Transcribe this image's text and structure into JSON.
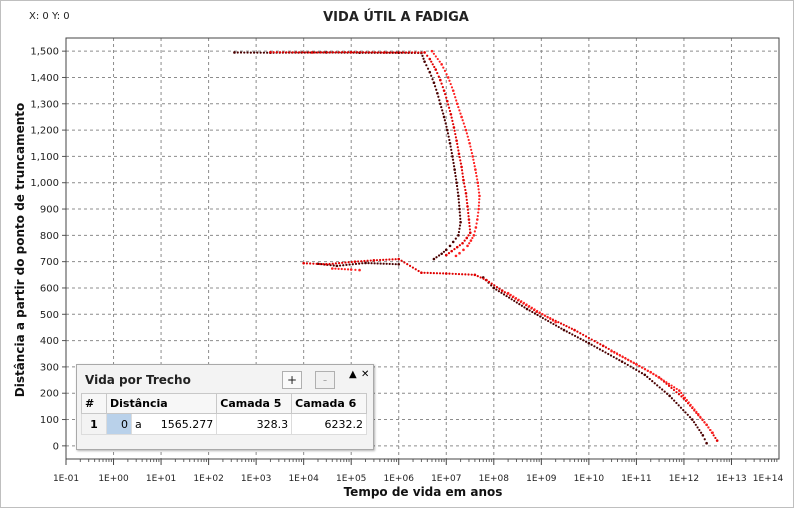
{
  "window": {
    "coords": "X: 0 Y: 0",
    "title": "VIDA ÚTIL A FADIGA"
  },
  "chart_data": {
    "type": "scatter",
    "title": "VIDA ÚTIL A FADIGA",
    "xlabel": "Tempo de vida em anos",
    "ylabel": "Distância a partir do ponto de truncamento",
    "x_scale": "log",
    "xlim": [
      "1E-01",
      "1E+14"
    ],
    "ylim": [
      -50,
      1550
    ],
    "x_ticks": [
      "1E-01",
      "1E+00",
      "1E+01",
      "1E+02",
      "1E+03",
      "1E+04",
      "1E+05",
      "1E+06",
      "1E+07",
      "1E+08",
      "1E+09",
      "1E+10",
      "1E+11",
      "1E+12",
      "1E+13",
      "1E+14"
    ],
    "y_ticks": [
      "0",
      "100",
      "200",
      "300",
      "400",
      "500",
      "600",
      "700",
      "800",
      "900",
      "1,000",
      "1,100",
      "1,200",
      "1,300",
      "1,400",
      "1,500"
    ],
    "grid": true,
    "colors": {
      "dark": "#4a0000",
      "red": "#e00000",
      "bright": "#ff2020"
    },
    "series": [
      {
        "color": "dark",
        "points": [
          [
            350,
            1495
          ],
          [
            2000,
            1494
          ],
          [
            30000,
            1495
          ],
          [
            150000,
            1494
          ],
          [
            1000000,
            1494
          ],
          [
            3000000,
            1493
          ],
          [
            3500000,
            1460
          ],
          [
            4500000,
            1420
          ],
          [
            5500000,
            1380
          ],
          [
            6500000,
            1340
          ],
          [
            7500000,
            1300
          ],
          [
            9000000,
            1250
          ],
          [
            10500000,
            1200
          ],
          [
            12000000,
            1150
          ],
          [
            13500000,
            1100
          ],
          [
            15000000,
            1050
          ],
          [
            16500000,
            1000
          ],
          [
            18000000,
            950
          ],
          [
            19000000,
            900
          ],
          [
            20000000,
            850
          ],
          [
            18000000,
            800
          ],
          [
            14000000,
            775
          ],
          [
            12000000,
            760
          ],
          [
            10000000,
            745
          ],
          [
            8000000,
            730
          ],
          [
            5500000,
            710
          ],
          [
            20000,
            692
          ],
          [
            50000,
            684
          ],
          [
            200000,
            695
          ],
          [
            1000000,
            690
          ],
          [
            60000000,
            640
          ],
          [
            100000000,
            600
          ],
          [
            500000000,
            520
          ],
          [
            3000000000,
            440
          ],
          [
            10000000000,
            390
          ],
          [
            50000000000,
            320
          ],
          [
            150000000000,
            270
          ],
          [
            500000000000,
            190
          ],
          [
            1500000000000,
            100
          ],
          [
            2500000000000,
            40
          ],
          [
            3000000000000,
            10
          ]
        ]
      },
      {
        "color": "red",
        "points": [
          [
            2000,
            1496
          ],
          [
            15000,
            1495
          ],
          [
            100000,
            1496
          ],
          [
            500000,
            1495
          ],
          [
            3500000,
            1495
          ],
          [
            4500000,
            1470
          ],
          [
            6000000,
            1430
          ],
          [
            7500000,
            1390
          ],
          [
            9000000,
            1350
          ],
          [
            10500000,
            1310
          ],
          [
            12500000,
            1260
          ],
          [
            14500000,
            1210
          ],
          [
            16500000,
            1160
          ],
          [
            18500000,
            1110
          ],
          [
            21000000,
            1060
          ],
          [
            23000000,
            1010
          ],
          [
            26000000,
            960
          ],
          [
            28000000,
            910
          ],
          [
            30000000,
            860
          ],
          [
            32000000,
            810
          ],
          [
            27000000,
            790
          ],
          [
            22000000,
            770
          ],
          [
            17000000,
            755
          ],
          [
            13000000,
            740
          ],
          [
            10000000,
            725
          ],
          [
            10000,
            694
          ],
          [
            30000,
            690
          ],
          [
            120000,
            700
          ],
          [
            300000,
            705
          ],
          [
            1000000,
            710
          ],
          [
            3000000,
            658
          ],
          [
            10000000,
            655
          ],
          [
            40000000,
            650
          ],
          [
            70000000,
            630
          ],
          [
            150000000,
            590
          ],
          [
            800000000,
            510
          ],
          [
            5000000000,
            440
          ],
          [
            20000000000,
            380
          ],
          [
            100000000000,
            310
          ],
          [
            300000000000,
            260
          ],
          [
            1000000000000,
            180
          ],
          [
            3000000000000,
            80
          ],
          [
            5000000000000,
            20
          ]
        ]
      },
      {
        "color": "bright",
        "points": [
          [
            5000000,
            1500
          ],
          [
            8000000,
            1450
          ],
          [
            11000000,
            1400
          ],
          [
            14000000,
            1350
          ],
          [
            17000000,
            1300
          ],
          [
            21000000,
            1250
          ],
          [
            26000000,
            1200
          ],
          [
            31000000,
            1150
          ],
          [
            36000000,
            1100
          ],
          [
            41000000,
            1050
          ],
          [
            46000000,
            1000
          ],
          [
            50000000,
            950
          ],
          [
            48000000,
            900
          ],
          [
            45000000,
            860
          ],
          [
            42000000,
            830
          ],
          [
            38000000,
            800
          ],
          [
            33000000,
            780
          ],
          [
            28000000,
            760
          ],
          [
            23000000,
            745
          ],
          [
            19000000,
            732
          ],
          [
            16000000,
            722
          ],
          [
            40000,
            674
          ],
          [
            100000,
            670
          ],
          [
            150000,
            668
          ],
          [
            200000000,
            580
          ],
          [
            2000000000,
            470
          ],
          [
            30000000000,
            360
          ],
          [
            200000000000,
            280
          ],
          [
            800000000000,
            210
          ],
          [
            2000000000000,
            120
          ],
          [
            4000000000000,
            50
          ]
        ]
      }
    ]
  },
  "panel": {
    "title": "Vida por Trecho",
    "add_label": "+",
    "remove_label": "-",
    "pin_icon": "▲",
    "close_icon": "✕",
    "columns": [
      "#",
      "Distância",
      "Camada 5",
      "Camada 6"
    ],
    "rows": [
      {
        "num": "1",
        "dist": "0",
        "unit": "a",
        "dist_val": "1565.277",
        "c5": "328.3",
        "c6": "6232.2"
      }
    ]
  }
}
